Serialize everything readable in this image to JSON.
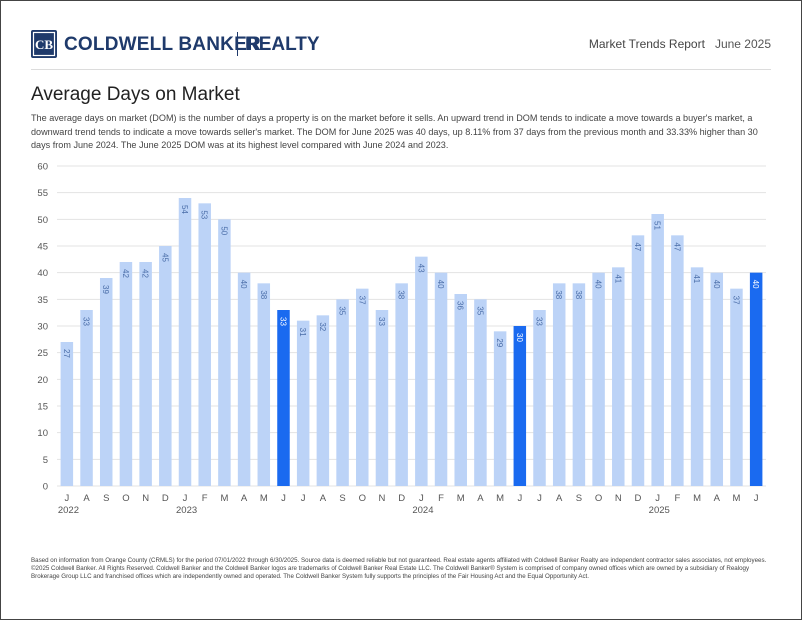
{
  "header": {
    "brand": "COLDWELL BANKER",
    "brand_suffix": "REALTY",
    "report_title": "Market Trends Report",
    "report_date": "June 2025"
  },
  "page": {
    "title": "Average Days on Market",
    "description": "The average days on market (DOM) is the number of days a property is on the market before it sells. An upward trend in DOM tends to indicate a move towards a buyer's market, a downward trend tends to indicate a move towards seller's market. The DOM for June 2025 was 40 days, up 8.11% from 37 days from the previous month and 33.33% higher than 30 days from June 2024. The June 2025 DOM was at its highest level compared with June 2024 and 2023.",
    "footer": "Based on information from Orange County (CRMLS) for the period 07/01/2022 through 6/30/2025. Source data is deemed reliable but not guaranteed. Real estate agents affiliated with Coldwell Banker Realty are independent contractor sales associates, not employees. ©2025 Coldwell Banker. All Rights Reserved. Coldwell Banker and the Coldwell Banker logos are trademarks of Coldwell Banker Real Estate LLC. The Coldwell Banker® System is comprised of company owned offices which are owned by a subsidiary of Realogy Brokerage Group LLC and franchised offices which are independently owned and operated. The Coldwell Banker System fully supports the principles of the Fair Housing Act and the Equal Opportunity Act."
  },
  "chart_data": {
    "type": "bar",
    "title": "Average Days on Market",
    "xlabel": "",
    "ylabel": "",
    "ylim": [
      0,
      60
    ],
    "yticks": [
      0,
      5,
      10,
      15,
      20,
      25,
      30,
      35,
      40,
      45,
      50,
      55,
      60
    ],
    "grid": true,
    "categories": [
      "J",
      "A",
      "S",
      "O",
      "N",
      "D",
      "J",
      "F",
      "M",
      "A",
      "M",
      "J",
      "J",
      "A",
      "S",
      "O",
      "N",
      "D",
      "J",
      "F",
      "M",
      "A",
      "M",
      "J",
      "J",
      "A",
      "S",
      "O",
      "N",
      "D",
      "J",
      "F",
      "M",
      "A",
      "M",
      "J"
    ],
    "periods": [
      "Jul 2022",
      "Aug 2022",
      "Sep 2022",
      "Oct 2022",
      "Nov 2022",
      "Dec 2022",
      "Jan 2023",
      "Feb 2023",
      "Mar 2023",
      "Apr 2023",
      "May 2023",
      "Jun 2023",
      "Jul 2023",
      "Aug 2023",
      "Sep 2023",
      "Oct 2023",
      "Nov 2023",
      "Dec 2023",
      "Jan 2024",
      "Feb 2024",
      "Mar 2024",
      "Apr 2024",
      "May 2024",
      "Jun 2024",
      "Jul 2024",
      "Aug 2024",
      "Sep 2024",
      "Oct 2024",
      "Nov 2024",
      "Dec 2024",
      "Jan 2025",
      "Feb 2025",
      "Mar 2025",
      "Apr 2025",
      "May 2025",
      "Jun 2025"
    ],
    "values": [
      27,
      33,
      39,
      42,
      42,
      45,
      54,
      53,
      50,
      40,
      38,
      33,
      31,
      32,
      35,
      37,
      33,
      38,
      43,
      40,
      36,
      35,
      29,
      30,
      33,
      38,
      38,
      40,
      41,
      47,
      51,
      47,
      41,
      40,
      37,
      40
    ],
    "highlight_indices": [
      11,
      23,
      35
    ],
    "year_labels": [
      {
        "index": 0,
        "label": "2022"
      },
      {
        "index": 6,
        "label": "2023"
      },
      {
        "index": 18,
        "label": "2024"
      },
      {
        "index": 30,
        "label": "2025"
      }
    ],
    "colors": {
      "bar": "#bcd3f7",
      "highlight": "#1a6af0",
      "bar_label": "#4a6da8",
      "highlight_label": "#ffffff",
      "grid": "#e3e3e3",
      "axis_text": "#555555"
    }
  }
}
